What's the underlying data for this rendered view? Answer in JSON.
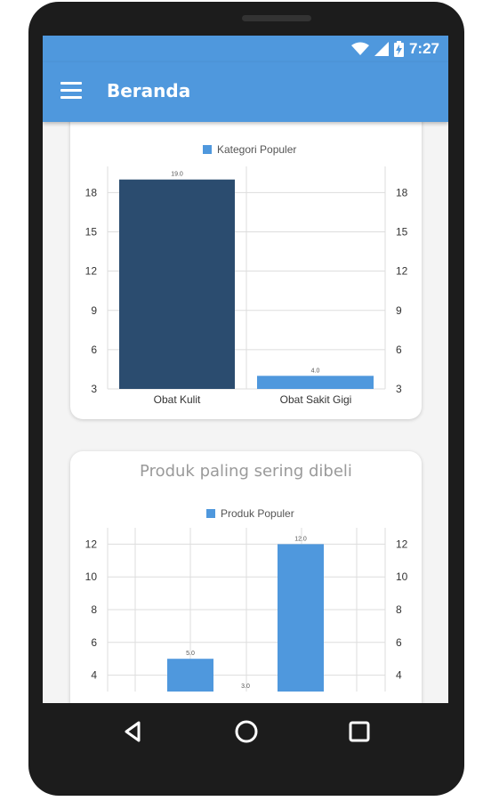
{
  "status_bar": {
    "time": "7:27",
    "icons": [
      "wifi-icon",
      "signal-icon",
      "battery-charging-icon"
    ]
  },
  "app_bar": {
    "title": "Beranda",
    "menu_icon": "hamburger-menu-icon"
  },
  "colors": {
    "primary": "#4f98dd",
    "bar_dark": "#2b4c6f",
    "bar_light": "#4f98dd"
  },
  "charts": {
    "chart1": {
      "title": "",
      "legend": "Kategori Populer",
      "chart_data": {
        "type": "bar",
        "categories": [
          "Obat Kulit",
          "Obat Sakit Gigi"
        ],
        "values": [
          19.0,
          4.0
        ],
        "value_labels": [
          "19.0",
          "4.0"
        ],
        "bar_colors": [
          "#2b4c6f",
          "#4f98dd"
        ],
        "ylim": [
          3,
          20
        ],
        "yticks": [
          3,
          6,
          9,
          12,
          15,
          18
        ],
        "legend": [
          "Kategori Populer"
        ],
        "dual_y_axis": true,
        "grid": true
      }
    },
    "chart2": {
      "title": "Produk paling sering dibeli",
      "legend": "Produk Populer",
      "chart_data": {
        "type": "bar",
        "categories": [
          "",
          "",
          ""
        ],
        "values": [
          5.0,
          3.0,
          12.0
        ],
        "value_labels": [
          "5.0",
          "3.0",
          "12.0"
        ],
        "bar_colors": [
          "#4f98dd",
          "#4f98dd",
          "#4f98dd"
        ],
        "ylim": [
          3,
          13
        ],
        "yticks": [
          4,
          6,
          8,
          10,
          12
        ],
        "legend": [
          "Produk Populer"
        ],
        "dual_y_axis": true,
        "grid": true
      }
    }
  },
  "nav_bar": {
    "icons": [
      "back-icon",
      "home-icon",
      "recents-icon"
    ]
  }
}
